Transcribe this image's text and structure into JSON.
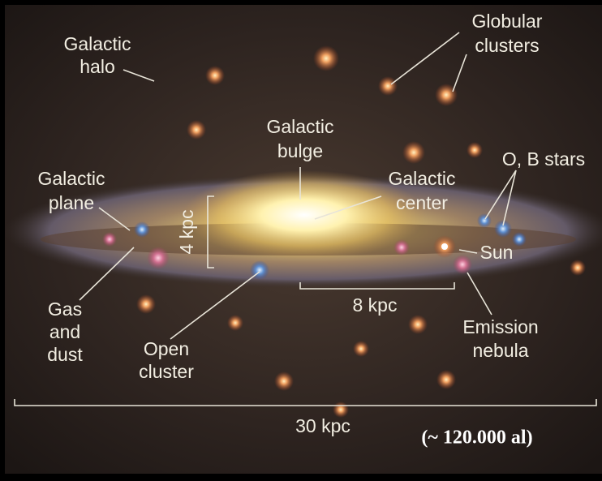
{
  "labels": {
    "halo": [
      "Galactic",
      "halo"
    ],
    "globular": [
      "Globular",
      "clusters"
    ],
    "bulge": [
      "Galactic",
      "bulge"
    ],
    "plane": [
      "Galactic",
      "plane"
    ],
    "center": [
      "Galactic",
      "center"
    ],
    "ob_stars": [
      "O, B stars"
    ],
    "sun": [
      "Sun"
    ],
    "gas": [
      "Gas",
      "and",
      "dust"
    ],
    "open_cluster": [
      "Open",
      "cluster"
    ],
    "nebula": [
      "Emission",
      "nebula"
    ]
  },
  "scales": {
    "height": "4 kpc",
    "sun_distance": "8 kpc",
    "diameter": "30 kpc"
  },
  "note": "(~ 120.000 al)"
}
